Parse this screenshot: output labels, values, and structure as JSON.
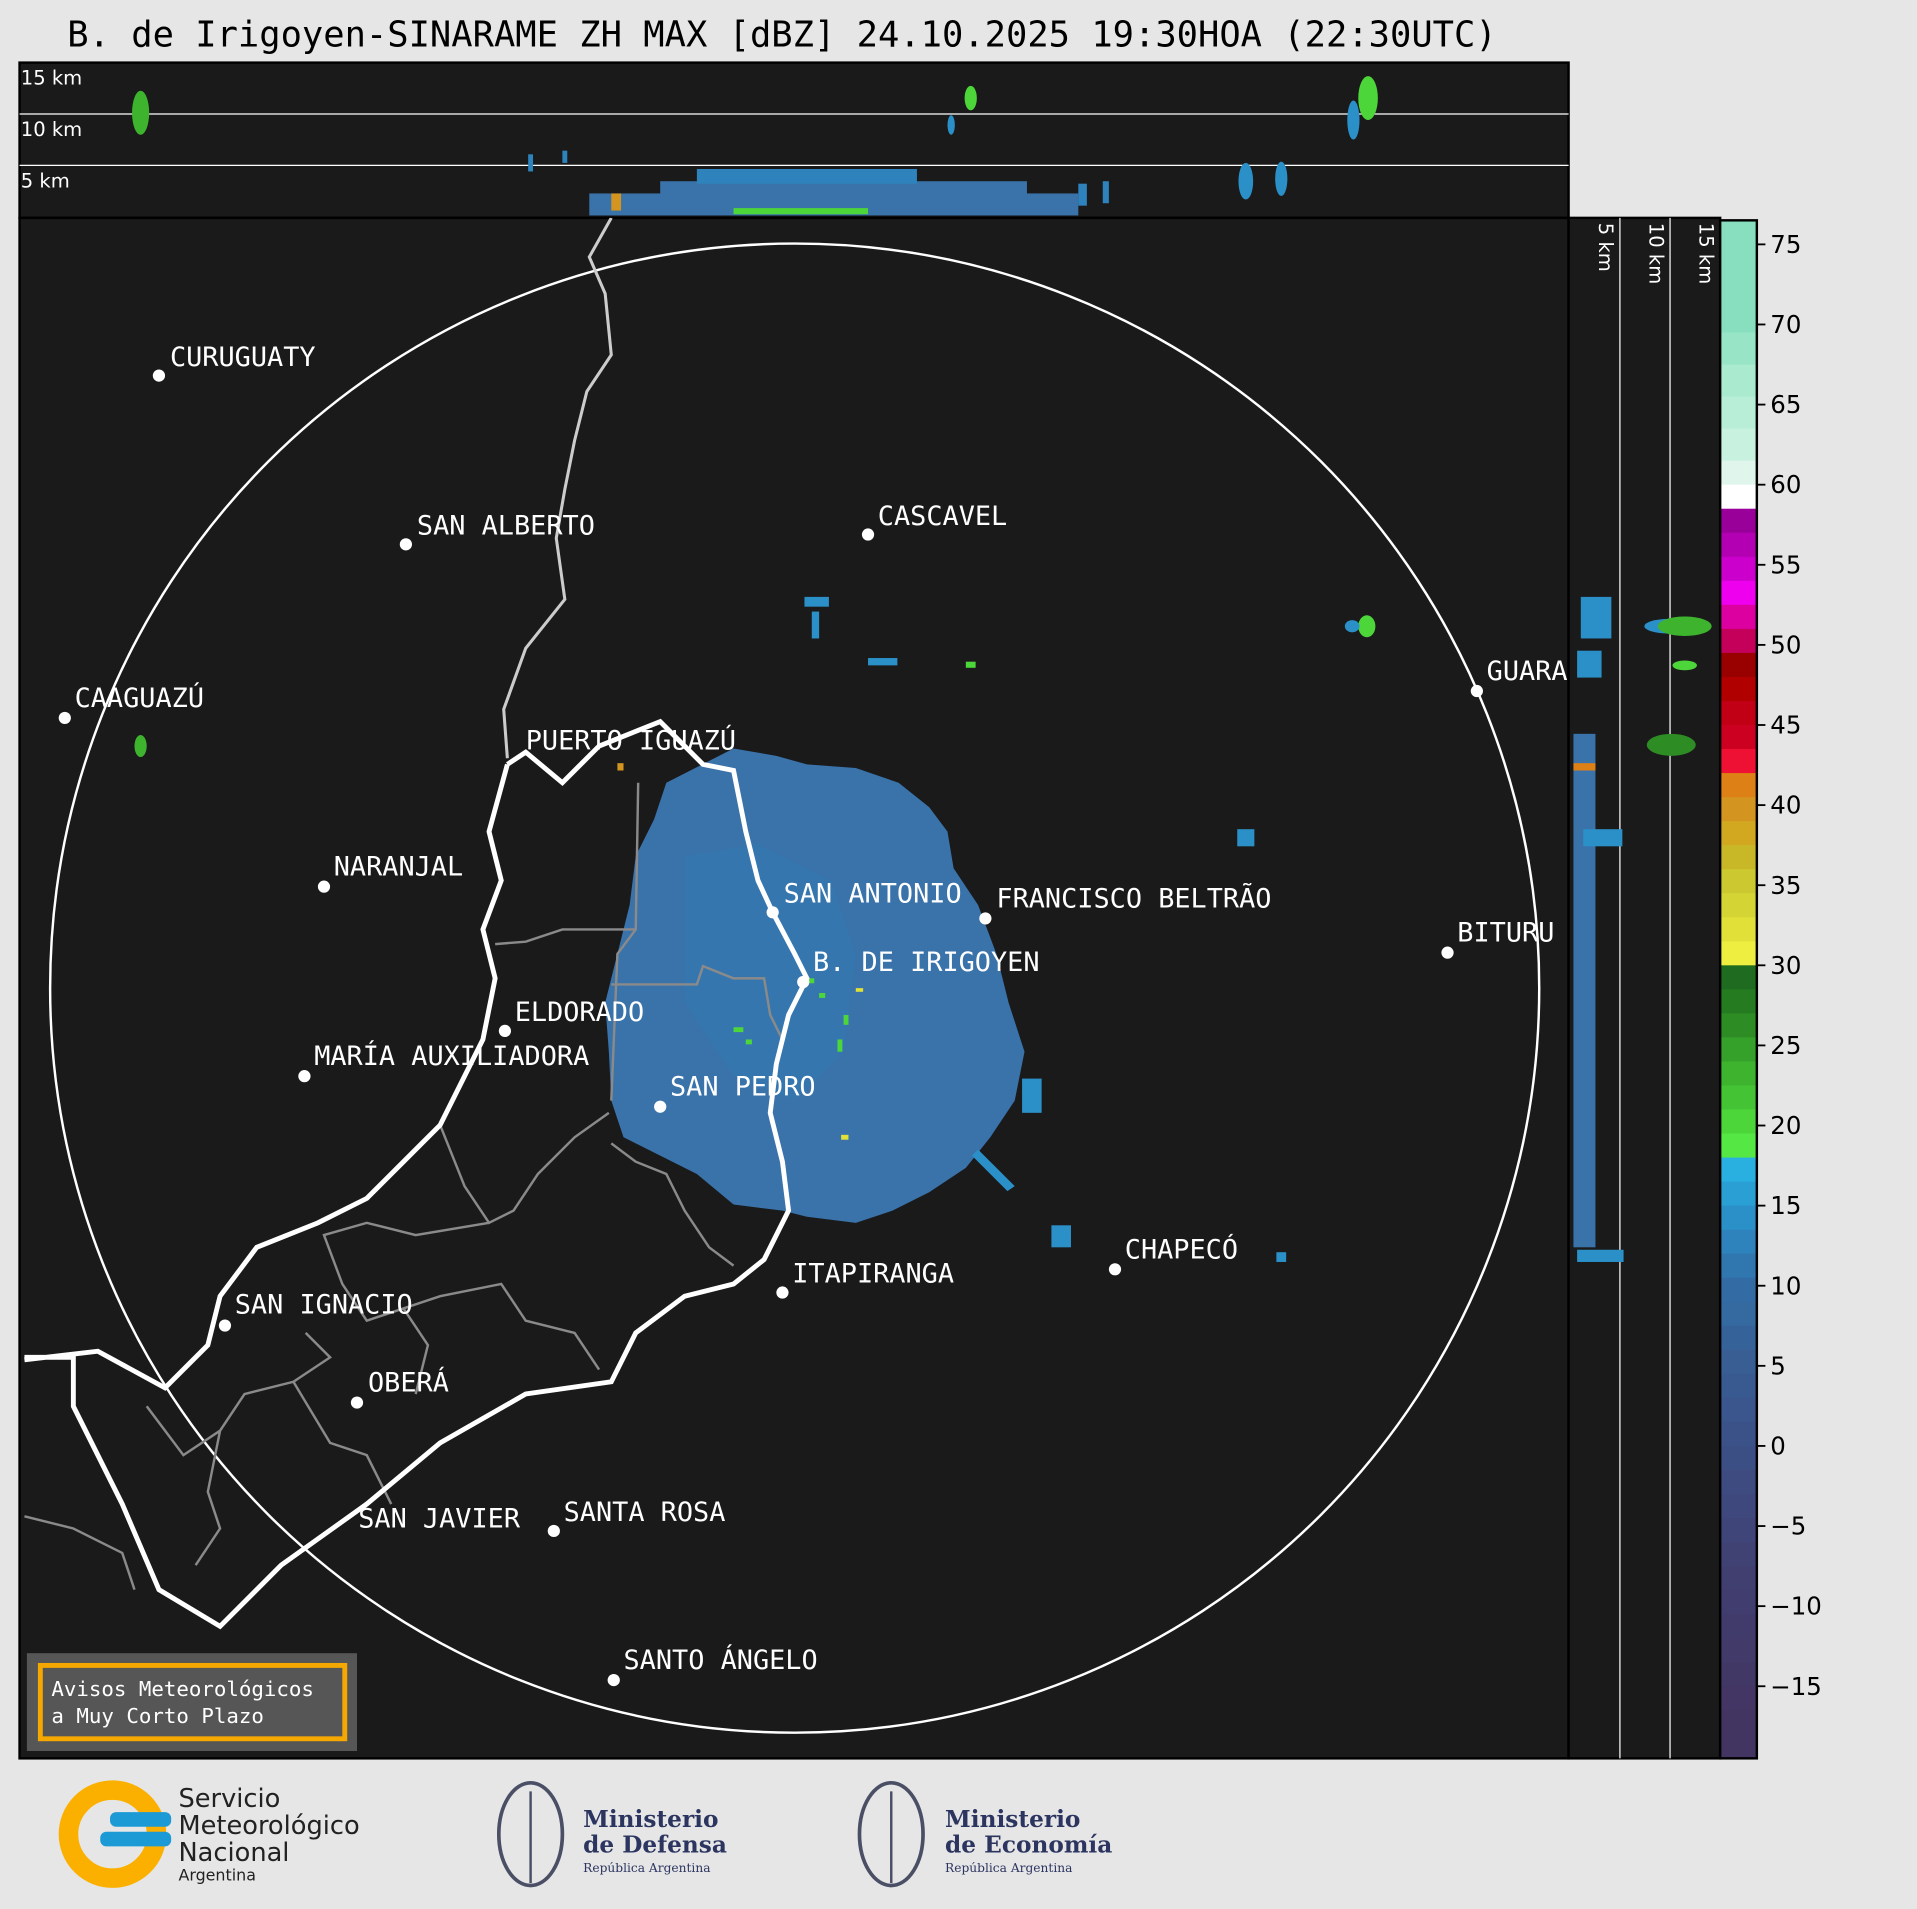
{
  "title": "B. de Irigoyen-SINARAME ZH MAX [dBZ] 24.10.2025 19:30HOA (22:30UTC)",
  "top_panel": {
    "height_labels": [
      "15 km",
      "10 km",
      "5 km"
    ]
  },
  "side_panel": {
    "height_labels": [
      "5 km",
      "10 km",
      "15 km"
    ]
  },
  "map": {
    "cities": [
      "CURUGUATY",
      "SAN ALBERTO",
      "CASCAVEL",
      "CAAGUAZÚ",
      "GUARA",
      "PUERTO IGUAZÚ",
      "NARANJAL",
      "SAN ANTONIO",
      "FRANCISCO BELTRÃO",
      "B. DE IRIGOYEN",
      "BITURU",
      "ELDORADO",
      "MARÍA AUXILIADORA",
      "SAN PEDRO",
      "CHAPECÓ",
      "ITAPIRANGA",
      "SAN IGNACIO",
      "OBERÁ",
      "SAN JAVIER",
      "SANTA ROSA",
      "SANTO ÁNGELO"
    ],
    "background_color": "#1a1a1a",
    "echo_color": "#3a72aa"
  },
  "warning_box": {
    "line1": "Avisos Meteorológicos",
    "line2": "a Muy Corto Plazo",
    "border_color": "#f5a800"
  },
  "colorbar": {
    "unit": "dBZ",
    "range": [
      -19.5,
      76.5
    ],
    "ticks": [
      "−15",
      "−10",
      "−5",
      "0",
      "5",
      "10",
      "15",
      "20",
      "25",
      "30",
      "35",
      "40",
      "45",
      "50",
      "55",
      "60",
      "65",
      "70",
      "75"
    ],
    "tick_values": [
      -15,
      -10,
      -5,
      0,
      5,
      10,
      15,
      20,
      25,
      30,
      35,
      40,
      45,
      50,
      55,
      60,
      65,
      70,
      75
    ],
    "levels": [
      [
        69.5,
        "#88dfbf"
      ],
      [
        67.5,
        "#98e4c6"
      ],
      [
        65.5,
        "#aaeacf"
      ],
      [
        63.5,
        "#b8eed8"
      ],
      [
        61.5,
        "#c8f1e0"
      ],
      [
        60,
        "#e0f6ec"
      ],
      [
        58.5,
        "#ffffff"
      ],
      [
        57,
        "#990099"
      ],
      [
        55.5,
        "#b300b3"
      ],
      [
        54,
        "#cc00cc"
      ],
      [
        52.5,
        "#ee00ee"
      ],
      [
        51,
        "#dd00a0"
      ],
      [
        49.5,
        "#c4005a"
      ],
      [
        48,
        "#990000"
      ],
      [
        46.5,
        "#b00000"
      ],
      [
        45,
        "#c20015"
      ],
      [
        43.5,
        "#cc0020"
      ],
      [
        42,
        "#ee1133"
      ],
      [
        40.5,
        "#dd8015"
      ],
      [
        39,
        "#d49520"
      ],
      [
        37.5,
        "#d2a820"
      ],
      [
        36,
        "#c8b828"
      ],
      [
        34.5,
        "#ccc830"
      ],
      [
        33,
        "#d4d435"
      ],
      [
        31.5,
        "#e0e038"
      ],
      [
        30,
        "#eeee40"
      ],
      [
        28.5,
        "#1f6b1f"
      ],
      [
        27,
        "#257c20"
      ],
      [
        25.5,
        "#2e8c25"
      ],
      [
        24,
        "#35a02a"
      ],
      [
        22.5,
        "#3db32e"
      ],
      [
        21,
        "#44c435"
      ],
      [
        19.5,
        "#4dd63a"
      ],
      [
        18,
        "#55e845"
      ],
      [
        16.5,
        "#2ab0e0"
      ],
      [
        15,
        "#2a9fd4"
      ],
      [
        13.5,
        "#2b90c8"
      ],
      [
        12,
        "#2e83bd"
      ],
      [
        10.5,
        "#3077b0"
      ],
      [
        9,
        "#336ca5"
      ],
      [
        7.5,
        "#356aa0"
      ],
      [
        6,
        "#36629a"
      ],
      [
        4.5,
        "#385e94"
      ],
      [
        3,
        "#385a90"
      ],
      [
        1.5,
        "#3a568c"
      ],
      [
        0,
        "#3b5288"
      ],
      [
        -1.5,
        "#3c4f84"
      ],
      [
        -3,
        "#3d4b80"
      ],
      [
        -4.5,
        "#3e487c"
      ],
      [
        -6,
        "#3f4578"
      ],
      [
        -7.5,
        "#404274"
      ],
      [
        -9,
        "#403f70"
      ],
      [
        -10.5,
        "#413d6e"
      ],
      [
        -12,
        "#413b6b"
      ],
      [
        -13.5,
        "#423a69"
      ],
      [
        -15,
        "#423866"
      ],
      [
        -16.5,
        "#433664"
      ],
      [
        -19.5,
        "#433562"
      ]
    ]
  },
  "footer": {
    "smn": {
      "line1": "Servicio",
      "line2": "Meteorológico",
      "line3": "Nacional",
      "line4": "Argentina"
    },
    "defensa": {
      "line1": "Ministerio",
      "line2": "de Defensa",
      "line3": "República Argentina"
    },
    "economia": {
      "line1": "Ministerio",
      "line2": "de Economía",
      "line3": "República Argentina"
    }
  }
}
